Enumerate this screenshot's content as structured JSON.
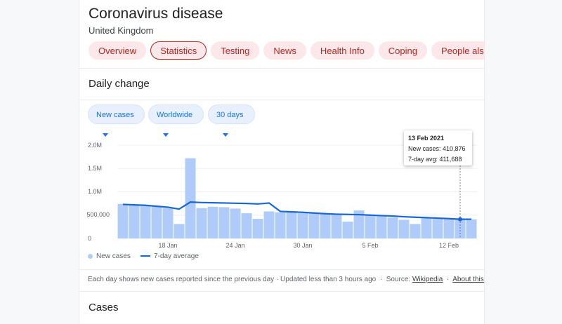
{
  "header": {
    "title": "Coronavirus disease",
    "subtitle": "United Kingdom"
  },
  "tabs": [
    "Overview",
    "Statistics",
    "Testing",
    "News",
    "Health Info",
    "Coping",
    "People also search fo"
  ],
  "daily": {
    "title": "Daily change",
    "filters": {
      "metric": "New cases",
      "region": "Worldwide",
      "range": "30 days"
    }
  },
  "chart_data": {
    "type": "bar",
    "title": "",
    "ylim": [
      0,
      2000000
    ],
    "yticks": [
      "2.0M",
      "1.5M",
      "1.0M",
      "500,000",
      "0"
    ],
    "xtick_labels": [
      {
        "label": "18 Jan",
        "index": 4
      },
      {
        "label": "24 Jan",
        "index": 10
      },
      {
        "label": "30 Jan",
        "index": 16
      },
      {
        "label": "5 Feb",
        "index": 22
      },
      {
        "label": "12 Feb",
        "index": 29
      }
    ],
    "series": [
      {
        "name": "New cases",
        "values": [
          740000,
          730000,
          720000,
          700000,
          650000,
          310000,
          1720000,
          650000,
          680000,
          670000,
          640000,
          540000,
          420000,
          580000,
          560000,
          560000,
          540000,
          540000,
          530000,
          530000,
          360000,
          600000,
          490000,
          480000,
          450000,
          400000,
          310000,
          430000,
          420000,
          410000,
          410876,
          410000
        ]
      },
      {
        "name": "7-day average",
        "values": [
          730000,
          720000,
          710000,
          690000,
          670000,
          630000,
          780000,
          770000,
          765000,
          760000,
          755000,
          750000,
          740000,
          760000,
          580000,
          570000,
          560000,
          545000,
          530000,
          520000,
          515000,
          510000,
          500000,
          490000,
          480000,
          465000,
          455000,
          445000,
          435000,
          425000,
          411688,
          411688
        ]
      }
    ],
    "legend": [
      "New cases",
      "7-day average"
    ],
    "tooltip": {
      "date": "13 Feb 2021",
      "new_cases": "New cases: 410,876",
      "avg": "7-day avg: 411,688"
    }
  },
  "colors": {
    "bar": "#aecbfa",
    "line": "#1967d2",
    "accent": "#b3261e"
  },
  "footnote": {
    "text": "Each day shows new cases reported since the previous day · Updated less than 3 hours ago",
    "sep": "·",
    "source_label": "Source:",
    "source_link": "Wikipedia",
    "about_link": "About this data"
  },
  "cases": {
    "title": "Cases"
  }
}
